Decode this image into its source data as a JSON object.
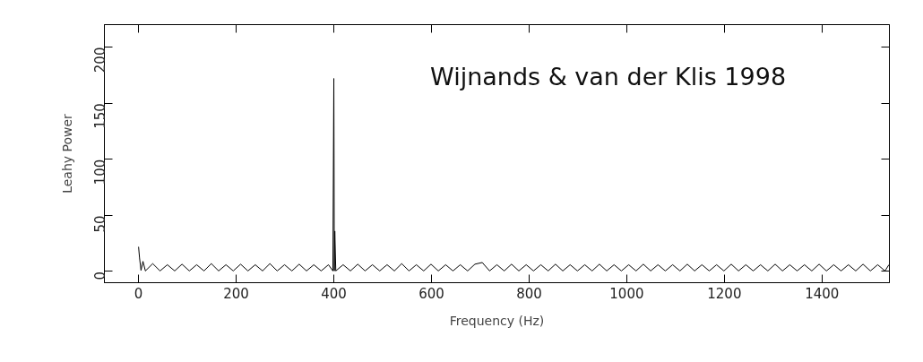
{
  "chart_data": {
    "type": "line",
    "xlabel": "Frequency (Hz)",
    "ylabel": "Leahy Power",
    "annotations": [
      "Wijnands & van der Klis 1998"
    ],
    "xlim": [
      -70,
      1538
    ],
    "ylim": [
      -10,
      220
    ],
    "xticks": [
      0,
      200,
      400,
      600,
      800,
      1000,
      1200,
      1400
    ],
    "yticks": [
      0,
      50,
      100,
      150,
      200
    ],
    "grid": false,
    "series": [
      {
        "color": "#000000",
        "x": [
          0,
          2,
          5,
          9,
          14,
          29,
          44,
          59,
          74,
          89,
          104,
          119,
          134,
          149,
          164,
          179,
          194,
          209,
          224,
          239,
          254,
          269,
          284,
          299,
          314,
          329,
          344,
          359,
          374,
          389,
          398,
          400,
          401,
          402,
          404,
          419,
          434,
          449,
          464,
          479,
          494,
          509,
          524,
          539,
          554,
          569,
          584,
          599,
          614,
          629,
          644,
          659,
          674,
          689,
          704,
          719,
          734,
          749,
          764,
          779,
          794,
          809,
          824,
          839,
          854,
          869,
          884,
          899,
          914,
          929,
          944,
          959,
          974,
          989,
          1004,
          1019,
          1034,
          1049,
          1064,
          1079,
          1094,
          1109,
          1124,
          1139,
          1154,
          1169,
          1184,
          1199,
          1214,
          1229,
          1244,
          1259,
          1274,
          1289,
          1304,
          1319,
          1334,
          1349,
          1364,
          1379,
          1394,
          1409,
          1424,
          1439,
          1454,
          1469,
          1484,
          1499,
          1514,
          1529,
          1537
        ],
        "values": [
          22,
          12,
          1,
          9,
          0.5,
          7,
          0.5,
          6,
          0.5,
          6.5,
          0.5,
          6,
          0.5,
          7,
          0.5,
          6,
          0.5,
          6.5,
          0.5,
          6,
          0.5,
          7,
          0.5,
          6,
          0.5,
          6.5,
          0.5,
          6,
          0.5,
          6,
          0.5,
          172,
          0.5,
          36,
          0.5,
          6,
          0.5,
          6.5,
          0.5,
          6,
          0.5,
          6,
          0.5,
          7,
          0.5,
          6,
          0.5,
          6.5,
          0.5,
          6,
          0.5,
          6,
          0.5,
          6.5,
          8,
          0.5,
          6,
          0.5,
          6.5,
          0.5,
          6,
          0.5,
          6,
          0.5,
          6.5,
          0.5,
          6,
          0.5,
          6,
          0.5,
          6.5,
          0.5,
          6,
          0.5,
          6,
          0.5,
          6.5,
          0.5,
          6,
          0.5,
          6,
          0.5,
          6.5,
          0.5,
          6,
          0.5,
          6,
          0.5,
          6.5,
          0.5,
          6,
          0.5,
          6,
          0.5,
          6.5,
          0.5,
          6,
          0.5,
          6,
          0.5,
          6.5,
          0.5,
          6,
          0.5,
          6,
          0.5,
          6.5,
          0.5,
          6,
          0.5,
          6
        ]
      }
    ]
  }
}
